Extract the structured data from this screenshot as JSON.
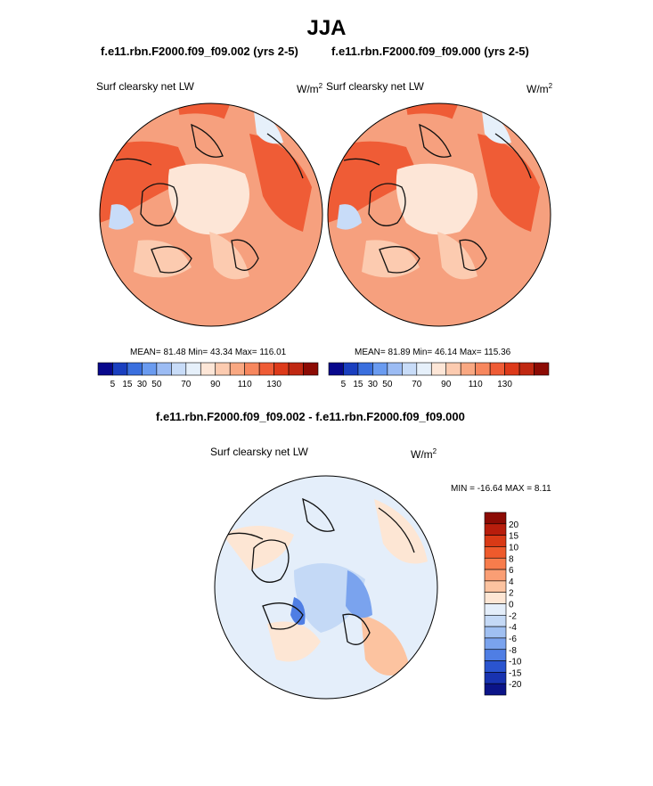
{
  "season_title": "JJA",
  "panels": [
    {
      "case_title": "f.e11.rbn.F2000.f09_f09.002 (yrs 2-5)",
      "variable": "Surf clearsky net LW",
      "units_base": "W/m",
      "units_exp": "2",
      "stats": "MEAN=  81.48  Min=  43.34  Max= 116.01"
    },
    {
      "case_title": "f.e11.rbn.F2000.f09_f09.000 (yrs 2-5)",
      "variable": "Surf clearsky net LW",
      "units_base": "W/m",
      "units_exp": "2",
      "stats": "MEAN=  81.89  Min=  46.14  Max= 115.36"
    },
    {
      "case_title": "f.e11.rbn.F2000.f09_f09.002 - f.e11.rbn.F2000.f09_f09.000",
      "variable": "Surf clearsky net LW",
      "units_base": "W/m",
      "units_exp": "2",
      "stats": "MIN = -16.64 MAX =   8.11"
    }
  ],
  "chart_data": [
    {
      "type": "heatmap",
      "projection": "north-polar-stereographic",
      "title": "f.e11.rbn.F2000.f09_f09.002 (yrs 2-5)",
      "variable": "Surf clearsky net LW",
      "units": "W/m2",
      "mean": 81.48,
      "min": 43.34,
      "max": 116.01,
      "colorbar": {
        "orientation": "horizontal",
        "tick_labels": [
          "5",
          "15",
          "30",
          "50",
          "70",
          "90",
          "110",
          "130"
        ],
        "colors": [
          "#08088c",
          "#1a3fbf",
          "#3a6fde",
          "#6a9bf0",
          "#9cbcf4",
          "#c8dcf8",
          "#e6f0fa",
          "#fde6d7",
          "#fccbb0",
          "#f9a882",
          "#f7875e",
          "#ef5c36",
          "#dd3a1a",
          "#c02812",
          "#8c0b04"
        ]
      }
    },
    {
      "type": "heatmap",
      "projection": "north-polar-stereographic",
      "title": "f.e11.rbn.F2000.f09_f09.000 (yrs 2-5)",
      "variable": "Surf clearsky net LW",
      "units": "W/m2",
      "mean": 81.89,
      "min": 46.14,
      "max": 115.36,
      "colorbar": {
        "orientation": "horizontal",
        "tick_labels": [
          "5",
          "15",
          "30",
          "50",
          "70",
          "90",
          "110",
          "130"
        ],
        "colors": [
          "#08088c",
          "#1a3fbf",
          "#3a6fde",
          "#6a9bf0",
          "#9cbcf4",
          "#c8dcf8",
          "#e6f0fa",
          "#fde6d7",
          "#fccbb0",
          "#f9a882",
          "#f7875e",
          "#ef5c36",
          "#dd3a1a",
          "#c02812",
          "#8c0b04"
        ]
      }
    },
    {
      "type": "heatmap",
      "projection": "north-polar-stereographic",
      "title": "f.e11.rbn.F2000.f09_f09.002 - f.e11.rbn.F2000.f09_f09.000",
      "variable": "Surf clearsky net LW",
      "units": "W/m2",
      "min": -16.64,
      "max": 8.11,
      "colorbar": {
        "orientation": "vertical",
        "tick_labels": [
          "20",
          "15",
          "10",
          "8",
          "6",
          "4",
          "2",
          "0",
          "-2",
          "-4",
          "-6",
          "-8",
          "-10",
          "-15",
          "-20"
        ],
        "colors": [
          "#8c0b04",
          "#b81d0c",
          "#d93a16",
          "#ee5a2c",
          "#f77c4c",
          "#fa9e74",
          "#fcc3a0",
          "#fde6d4",
          "#e4eefa",
          "#c4d9f6",
          "#a0c0f2",
          "#7aa3ee",
          "#4f7ee4",
          "#2a54cf",
          "#1833b0",
          "#0b1488"
        ]
      }
    }
  ]
}
